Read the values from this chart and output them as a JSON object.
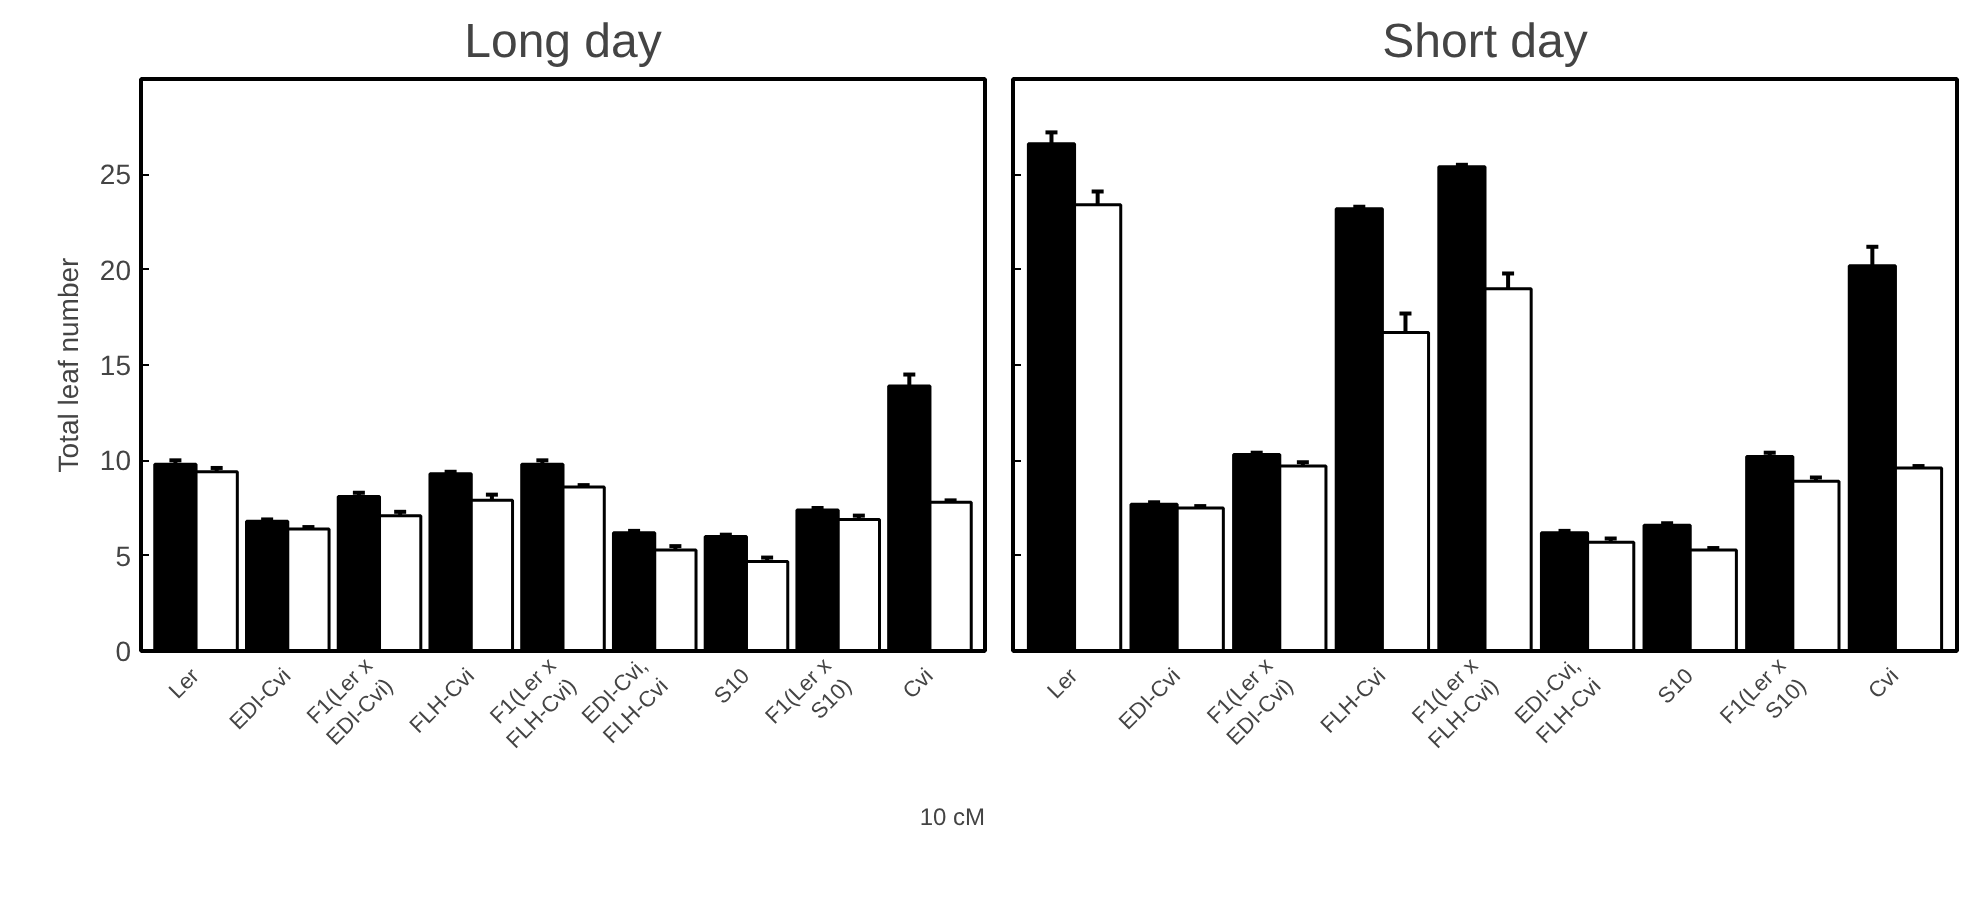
{
  "chart_data": [
    {
      "type": "bar",
      "title": "Long day",
      "ylabel": "Total leaf number",
      "categories": [
        "Ler",
        "EDI-Cvi",
        "F1(Ler x\nEDI-Cvi)",
        "FLH-Cvi",
        "F1(Ler x\nFLH-Cvi)",
        "EDI-Cvi,\nFLH-Cvi",
        "S10",
        "F1(Ler x\nS10)",
        "Cvi"
      ],
      "series": [
        {
          "color": "#000000",
          "values": [
            9.8,
            6.8,
            8.1,
            9.3,
            9.8,
            6.2,
            6.0,
            7.4,
            13.9
          ],
          "errors": [
            0.2,
            0.1,
            0.2,
            0.1,
            0.2,
            0.1,
            0.1,
            0.1,
            0.6
          ]
        },
        {
          "color": "#ffffff",
          "values": [
            9.4,
            6.4,
            7.1,
            7.9,
            8.6,
            5.3,
            4.7,
            6.9,
            7.8
          ],
          "errors": [
            0.2,
            0.1,
            0.2,
            0.3,
            0.1,
            0.2,
            0.2,
            0.2,
            0.1
          ]
        }
      ],
      "ylim": [
        0,
        30
      ],
      "yticks": [
        0,
        5,
        10,
        15,
        20,
        25
      ],
      "grid": false,
      "annotations": [
        "10 cM"
      ]
    },
    {
      "type": "bar",
      "title": "Short day",
      "categories": [
        "Ler",
        "EDI-Cvi",
        "F1(Ler x\nEDI-Cvi)",
        "FLH-Cvi",
        "F1(Ler x\nFLH-Cvi)",
        "EDI-Cvi,\nFLH-Cvi",
        "S10",
        "F1(Ler x\nS10)",
        "Cvi"
      ],
      "series": [
        {
          "color": "#000000",
          "values": [
            26.6,
            7.7,
            10.3,
            23.2,
            25.4,
            6.2,
            6.6,
            10.2,
            20.2
          ],
          "errors": [
            0.6,
            0.1,
            0.1,
            0.1,
            0.1,
            0.1,
            0.1,
            0.2,
            1.0
          ]
        },
        {
          "color": "#ffffff",
          "values": [
            23.4,
            7.5,
            9.7,
            16.7,
            19.0,
            5.7,
            5.3,
            8.9,
            9.6
          ],
          "errors": [
            0.7,
            0.1,
            0.2,
            1.0,
            0.8,
            0.2,
            0.1,
            0.2,
            0.1
          ]
        }
      ],
      "ylim": [
        0,
        30
      ],
      "yticks": [
        0,
        5,
        10,
        15,
        20,
        25
      ],
      "grid": false,
      "tick_labels": "x"
    }
  ]
}
